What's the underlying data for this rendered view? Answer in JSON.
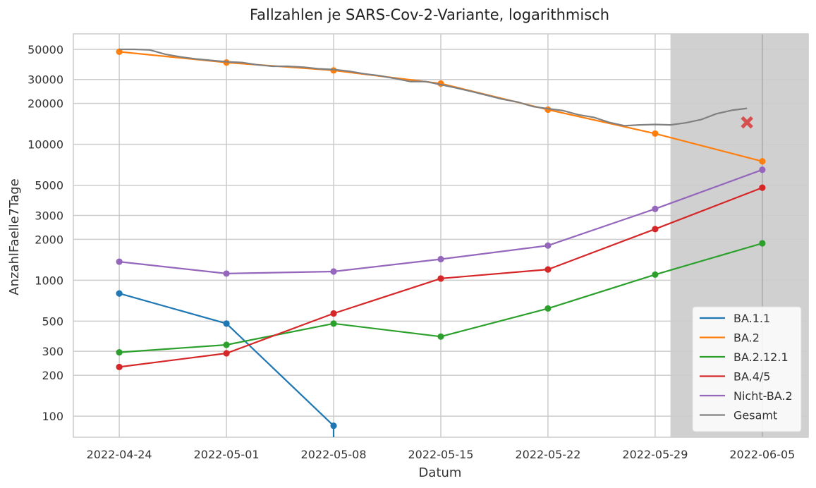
{
  "chart_data": {
    "type": "line",
    "title": "Fallzahlen je SARS-Cov-2-Variante, logarithmisch",
    "xlabel": "Datum",
    "ylabel": "AnzahlFaelle7Tage",
    "yscale": "log",
    "ylim": [
      70,
      65000
    ],
    "xlim": [
      "2022-04-21",
      "2022-06-08"
    ],
    "grid": true,
    "legend_position": "bottom-right",
    "x_ticks": [
      "2022-04-24",
      "2022-05-01",
      "2022-05-08",
      "2022-05-15",
      "2022-05-22",
      "2022-05-29",
      "2022-06-05"
    ],
    "y_ticks": [
      {
        "value": 100,
        "label": "100"
      },
      {
        "value": 200,
        "label": "200"
      },
      {
        "value": 300,
        "label": "300"
      },
      {
        "value": 500,
        "label": "500"
      },
      {
        "value": 1000,
        "label": "1000"
      },
      {
        "value": 2000,
        "label": "2000"
      },
      {
        "value": 3000,
        "label": "3000"
      },
      {
        "value": 5000,
        "label": "5000"
      },
      {
        "value": 10000,
        "label": "10000"
      },
      {
        "value": 20000,
        "label": "20000"
      },
      {
        "value": 30000,
        "label": "30000"
      },
      {
        "value": 50000,
        "label": "50000"
      }
    ],
    "shaded_region": {
      "x_start": "2022-05-30",
      "x_end": "2022-06-08",
      "color": "#d0d0d0"
    },
    "series": [
      {
        "name": "BA.1.1",
        "color": "#1f77b4",
        "markers": true,
        "points": [
          [
            "2022-04-24",
            800
          ],
          [
            "2022-05-01",
            480
          ],
          [
            "2022-05-08",
            85
          ]
        ],
        "drop_to_axis_at": "2022-05-08"
      },
      {
        "name": "BA.2",
        "color": "#ff7f0e",
        "markers": true,
        "points": [
          [
            "2022-04-24",
            48000
          ],
          [
            "2022-05-01",
            40000
          ],
          [
            "2022-05-08",
            35000
          ],
          [
            "2022-05-15",
            28000
          ],
          [
            "2022-05-22",
            18000
          ],
          [
            "2022-05-29",
            12000
          ],
          [
            "2022-06-05",
            7500
          ]
        ]
      },
      {
        "name": "BA.2.12.1",
        "color": "#2ca02c",
        "markers": true,
        "points": [
          [
            "2022-04-24",
            295
          ],
          [
            "2022-05-01",
            335
          ],
          [
            "2022-05-08",
            480
          ],
          [
            "2022-05-15",
            385
          ],
          [
            "2022-05-22",
            620
          ],
          [
            "2022-05-29",
            1100
          ],
          [
            "2022-06-05",
            1870
          ]
        ]
      },
      {
        "name": "BA.4/5",
        "color": "#d62728",
        "markers": true,
        "points": [
          [
            "2022-04-24",
            230
          ],
          [
            "2022-05-01",
            290
          ],
          [
            "2022-05-08",
            570
          ],
          [
            "2022-05-15",
            1030
          ],
          [
            "2022-05-22",
            1200
          ],
          [
            "2022-05-29",
            2380
          ],
          [
            "2022-06-05",
            4800
          ]
        ]
      },
      {
        "name": "Nicht-BA.2",
        "color": "#9467bd",
        "markers": true,
        "points": [
          [
            "2022-04-24",
            1370
          ],
          [
            "2022-05-01",
            1120
          ],
          [
            "2022-05-08",
            1160
          ],
          [
            "2022-05-15",
            1430
          ],
          [
            "2022-05-22",
            1800
          ],
          [
            "2022-05-29",
            3350
          ],
          [
            "2022-06-05",
            6500
          ]
        ]
      },
      {
        "name": "Gesamt",
        "color": "#808080",
        "markers": false,
        "points": [
          [
            "2022-04-24",
            50000
          ],
          [
            "2022-04-25",
            50000
          ],
          [
            "2022-04-26",
            49500
          ],
          [
            "2022-04-27",
            46000
          ],
          [
            "2022-04-28",
            44000
          ],
          [
            "2022-04-29",
            42500
          ],
          [
            "2022-04-30",
            41500
          ],
          [
            "2022-05-01",
            40500
          ],
          [
            "2022-05-02",
            40000
          ],
          [
            "2022-05-03",
            38500
          ],
          [
            "2022-05-04",
            37500
          ],
          [
            "2022-05-05",
            37500
          ],
          [
            "2022-05-06",
            37000
          ],
          [
            "2022-05-07",
            36000
          ],
          [
            "2022-05-08",
            35500
          ],
          [
            "2022-05-09",
            34500
          ],
          [
            "2022-05-10",
            33000
          ],
          [
            "2022-05-11",
            32000
          ],
          [
            "2022-05-12",
            30500
          ],
          [
            "2022-05-13",
            29000
          ],
          [
            "2022-05-14",
            29000
          ],
          [
            "2022-05-15",
            27500
          ],
          [
            "2022-05-16",
            26000
          ],
          [
            "2022-05-17",
            24500
          ],
          [
            "2022-05-18",
            23000
          ],
          [
            "2022-05-19",
            21500
          ],
          [
            "2022-05-20",
            20500
          ],
          [
            "2022-05-21",
            19000
          ],
          [
            "2022-05-22",
            18300
          ],
          [
            "2022-05-23",
            17700
          ],
          [
            "2022-05-24",
            16500
          ],
          [
            "2022-05-25",
            15800
          ],
          [
            "2022-05-26",
            14500
          ],
          [
            "2022-05-27",
            13700
          ],
          [
            "2022-05-28",
            13900
          ],
          [
            "2022-05-29",
            14000
          ],
          [
            "2022-05-30",
            13900
          ],
          [
            "2022-05-31",
            14400
          ],
          [
            "2022-06-01",
            15200
          ],
          [
            "2022-06-02",
            16800
          ],
          [
            "2022-06-03",
            17800
          ],
          [
            "2022-06-04",
            18400
          ]
        ]
      }
    ],
    "annotations": [
      {
        "type": "marker",
        "shape": "x",
        "x": "2022-06-04",
        "y": 14500,
        "color": "#d65050"
      }
    ]
  }
}
